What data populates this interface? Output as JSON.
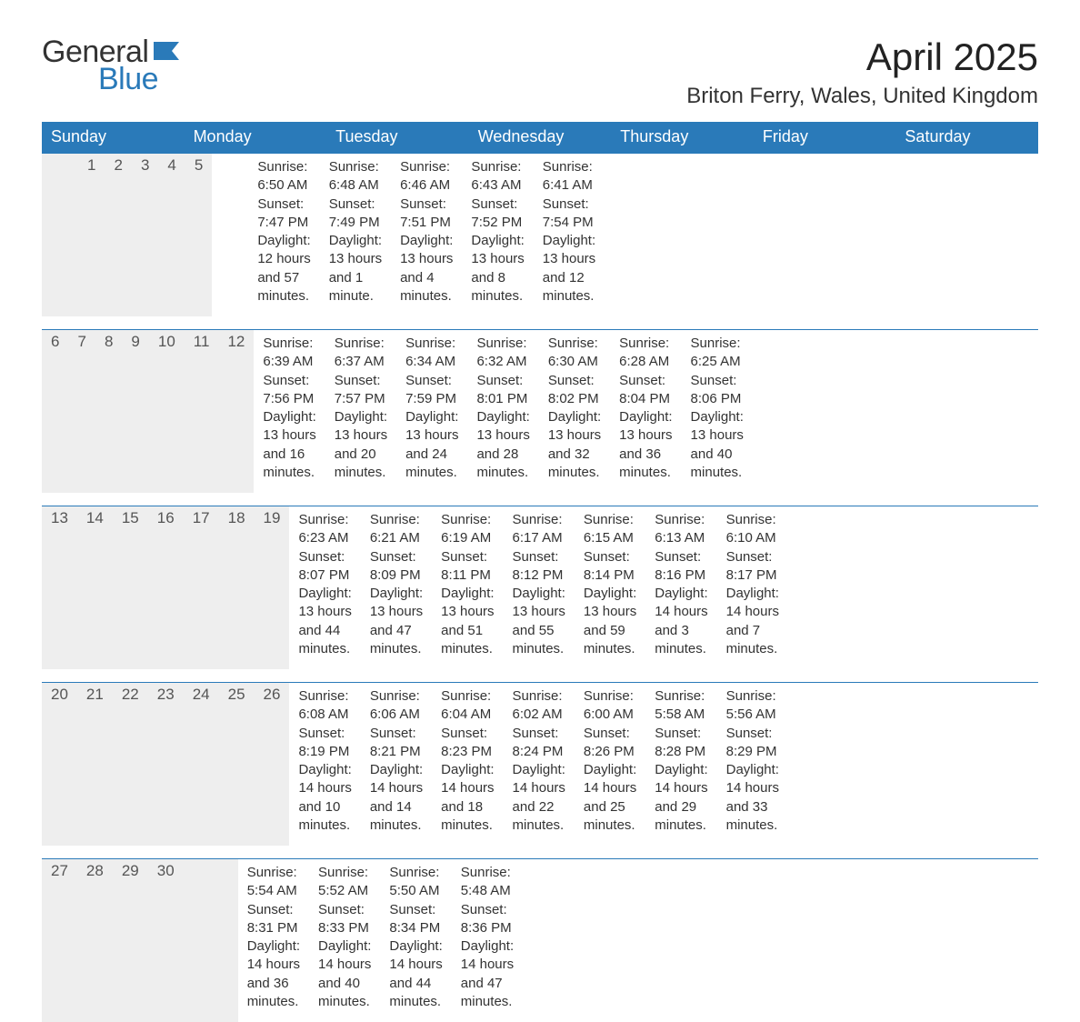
{
  "logo": {
    "text1": "General",
    "text2": "Blue",
    "accent_color": "#2a7ab9"
  },
  "title": "April 2025",
  "location": "Briton Ferry, Wales, United Kingdom",
  "colors": {
    "header_bg": "#2a7ab9",
    "header_text": "#ffffff",
    "daynum_bg": "#eeeeee",
    "body_bg": "#ffffff",
    "text": "#333333",
    "week_divider": "#2a7ab9"
  },
  "weekdays": [
    "Sunday",
    "Monday",
    "Tuesday",
    "Wednesday",
    "Thursday",
    "Friday",
    "Saturday"
  ],
  "weeks": [
    {
      "days": [
        {
          "num": "",
          "sunrise": "",
          "sunset": "",
          "daylight": ""
        },
        {
          "num": "",
          "sunrise": "",
          "sunset": "",
          "daylight": ""
        },
        {
          "num": "1",
          "sunrise": "Sunrise: 6:50 AM",
          "sunset": "Sunset: 7:47 PM",
          "daylight": "Daylight: 12 hours and 57 minutes."
        },
        {
          "num": "2",
          "sunrise": "Sunrise: 6:48 AM",
          "sunset": "Sunset: 7:49 PM",
          "daylight": "Daylight: 13 hours and 1 minute."
        },
        {
          "num": "3",
          "sunrise": "Sunrise: 6:46 AM",
          "sunset": "Sunset: 7:51 PM",
          "daylight": "Daylight: 13 hours and 4 minutes."
        },
        {
          "num": "4",
          "sunrise": "Sunrise: 6:43 AM",
          "sunset": "Sunset: 7:52 PM",
          "daylight": "Daylight: 13 hours and 8 minutes."
        },
        {
          "num": "5",
          "sunrise": "Sunrise: 6:41 AM",
          "sunset": "Sunset: 7:54 PM",
          "daylight": "Daylight: 13 hours and 12 minutes."
        }
      ]
    },
    {
      "days": [
        {
          "num": "6",
          "sunrise": "Sunrise: 6:39 AM",
          "sunset": "Sunset: 7:56 PM",
          "daylight": "Daylight: 13 hours and 16 minutes."
        },
        {
          "num": "7",
          "sunrise": "Sunrise: 6:37 AM",
          "sunset": "Sunset: 7:57 PM",
          "daylight": "Daylight: 13 hours and 20 minutes."
        },
        {
          "num": "8",
          "sunrise": "Sunrise: 6:34 AM",
          "sunset": "Sunset: 7:59 PM",
          "daylight": "Daylight: 13 hours and 24 minutes."
        },
        {
          "num": "9",
          "sunrise": "Sunrise: 6:32 AM",
          "sunset": "Sunset: 8:01 PM",
          "daylight": "Daylight: 13 hours and 28 minutes."
        },
        {
          "num": "10",
          "sunrise": "Sunrise: 6:30 AM",
          "sunset": "Sunset: 8:02 PM",
          "daylight": "Daylight: 13 hours and 32 minutes."
        },
        {
          "num": "11",
          "sunrise": "Sunrise: 6:28 AM",
          "sunset": "Sunset: 8:04 PM",
          "daylight": "Daylight: 13 hours and 36 minutes."
        },
        {
          "num": "12",
          "sunrise": "Sunrise: 6:25 AM",
          "sunset": "Sunset: 8:06 PM",
          "daylight": "Daylight: 13 hours and 40 minutes."
        }
      ]
    },
    {
      "days": [
        {
          "num": "13",
          "sunrise": "Sunrise: 6:23 AM",
          "sunset": "Sunset: 8:07 PM",
          "daylight": "Daylight: 13 hours and 44 minutes."
        },
        {
          "num": "14",
          "sunrise": "Sunrise: 6:21 AM",
          "sunset": "Sunset: 8:09 PM",
          "daylight": "Daylight: 13 hours and 47 minutes."
        },
        {
          "num": "15",
          "sunrise": "Sunrise: 6:19 AM",
          "sunset": "Sunset: 8:11 PM",
          "daylight": "Daylight: 13 hours and 51 minutes."
        },
        {
          "num": "16",
          "sunrise": "Sunrise: 6:17 AM",
          "sunset": "Sunset: 8:12 PM",
          "daylight": "Daylight: 13 hours and 55 minutes."
        },
        {
          "num": "17",
          "sunrise": "Sunrise: 6:15 AM",
          "sunset": "Sunset: 8:14 PM",
          "daylight": "Daylight: 13 hours and 59 minutes."
        },
        {
          "num": "18",
          "sunrise": "Sunrise: 6:13 AM",
          "sunset": "Sunset: 8:16 PM",
          "daylight": "Daylight: 14 hours and 3 minutes."
        },
        {
          "num": "19",
          "sunrise": "Sunrise: 6:10 AM",
          "sunset": "Sunset: 8:17 PM",
          "daylight": "Daylight: 14 hours and 7 minutes."
        }
      ]
    },
    {
      "days": [
        {
          "num": "20",
          "sunrise": "Sunrise: 6:08 AM",
          "sunset": "Sunset: 8:19 PM",
          "daylight": "Daylight: 14 hours and 10 minutes."
        },
        {
          "num": "21",
          "sunrise": "Sunrise: 6:06 AM",
          "sunset": "Sunset: 8:21 PM",
          "daylight": "Daylight: 14 hours and 14 minutes."
        },
        {
          "num": "22",
          "sunrise": "Sunrise: 6:04 AM",
          "sunset": "Sunset: 8:23 PM",
          "daylight": "Daylight: 14 hours and 18 minutes."
        },
        {
          "num": "23",
          "sunrise": "Sunrise: 6:02 AM",
          "sunset": "Sunset: 8:24 PM",
          "daylight": "Daylight: 14 hours and 22 minutes."
        },
        {
          "num": "24",
          "sunrise": "Sunrise: 6:00 AM",
          "sunset": "Sunset: 8:26 PM",
          "daylight": "Daylight: 14 hours and 25 minutes."
        },
        {
          "num": "25",
          "sunrise": "Sunrise: 5:58 AM",
          "sunset": "Sunset: 8:28 PM",
          "daylight": "Daylight: 14 hours and 29 minutes."
        },
        {
          "num": "26",
          "sunrise": "Sunrise: 5:56 AM",
          "sunset": "Sunset: 8:29 PM",
          "daylight": "Daylight: 14 hours and 33 minutes."
        }
      ]
    },
    {
      "days": [
        {
          "num": "27",
          "sunrise": "Sunrise: 5:54 AM",
          "sunset": "Sunset: 8:31 PM",
          "daylight": "Daylight: 14 hours and 36 minutes."
        },
        {
          "num": "28",
          "sunrise": "Sunrise: 5:52 AM",
          "sunset": "Sunset: 8:33 PM",
          "daylight": "Daylight: 14 hours and 40 minutes."
        },
        {
          "num": "29",
          "sunrise": "Sunrise: 5:50 AM",
          "sunset": "Sunset: 8:34 PM",
          "daylight": "Daylight: 14 hours and 44 minutes."
        },
        {
          "num": "30",
          "sunrise": "Sunrise: 5:48 AM",
          "sunset": "Sunset: 8:36 PM",
          "daylight": "Daylight: 14 hours and 47 minutes."
        },
        {
          "num": "",
          "sunrise": "",
          "sunset": "",
          "daylight": ""
        },
        {
          "num": "",
          "sunrise": "",
          "sunset": "",
          "daylight": ""
        },
        {
          "num": "",
          "sunrise": "",
          "sunset": "",
          "daylight": ""
        }
      ]
    }
  ]
}
